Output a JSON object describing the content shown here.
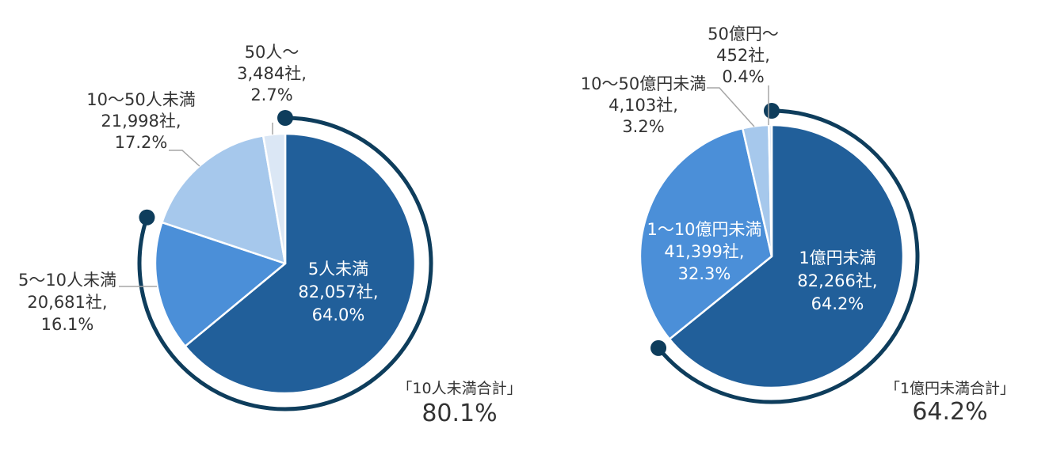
{
  "colors": {
    "slice_dark": "#215f9a",
    "slice_mid": "#4b8fd8",
    "slice_light": "#a6c8ec",
    "slice_lightest": "#dbe7f5",
    "arc": "#0e3d5c",
    "leader": "#a6a6a6",
    "label_dark": "#333333",
    "label_on_slice": "#ffffff"
  },
  "chart_data": [
    {
      "type": "pie",
      "title": "",
      "unit": "社",
      "slices": [
        {
          "name": "5人未満",
          "count": 82057,
          "percent": 64.0,
          "label_lines": [
            "5人未満",
            "82,057社,",
            "64.0%"
          ]
        },
        {
          "name": "5～10人未満",
          "count": 20681,
          "percent": 16.1,
          "label_lines": [
            "5～10人未満",
            "20,681社,",
            "16.1%"
          ]
        },
        {
          "name": "10～50人未満",
          "count": 21998,
          "percent": 17.2,
          "label_lines": [
            "10～50人未満",
            "21,998社,",
            "17.2%"
          ]
        },
        {
          "name": "50人～",
          "count": 3484,
          "percent": 2.7,
          "label_lines": [
            "50人～",
            "3,484社,",
            "2.7%"
          ]
        }
      ],
      "total_annotation": {
        "label": "「10人未満合計」",
        "value": "80.1%"
      }
    },
    {
      "type": "pie",
      "title": "",
      "unit": "社",
      "slices": [
        {
          "name": "1億円未満",
          "count": 82266,
          "percent": 64.2,
          "label_lines": [
            "1億円未満",
            "82,266社,",
            "64.2%"
          ]
        },
        {
          "name": "1～10億円未満",
          "count": 41399,
          "percent": 32.3,
          "label_lines": [
            "1～10億円未満",
            "41,399社,",
            "32.3%"
          ]
        },
        {
          "name": "10～50億円未満",
          "count": 4103,
          "percent": 3.2,
          "label_lines": [
            "10～50億円未満",
            "4,103社,",
            "3.2%"
          ]
        },
        {
          "name": "50億円～",
          "count": 452,
          "percent": 0.4,
          "label_lines": [
            "50億円～",
            "452社,",
            "0.4%"
          ]
        }
      ],
      "total_annotation": {
        "label": "「1億円未満合計」",
        "value": "64.2%"
      }
    }
  ]
}
